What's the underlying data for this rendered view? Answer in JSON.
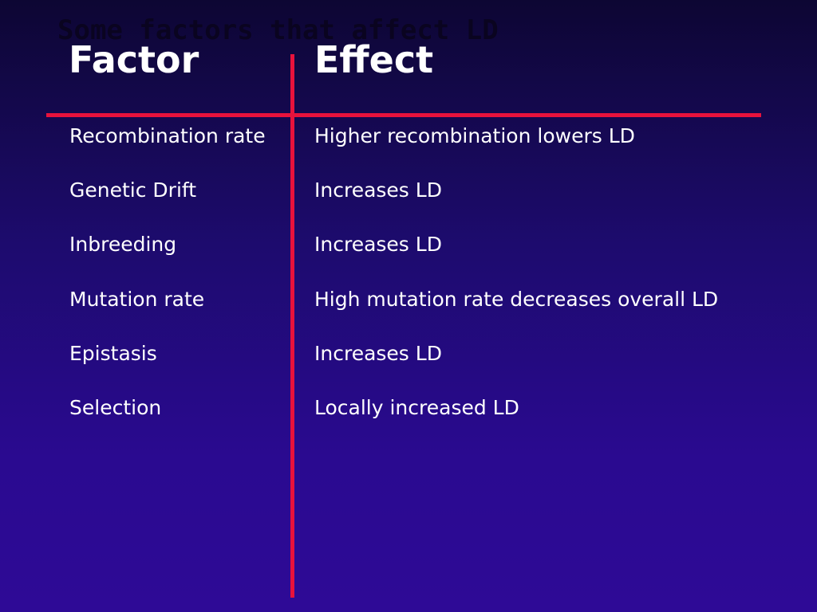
{
  "slide": {
    "title": "Some factors that affect LD"
  },
  "table": {
    "headers": {
      "factor": "Factor",
      "effect": "Effect"
    },
    "rows": [
      {
        "factor": "Recombination rate",
        "effect": "Higher recombination lowers LD"
      },
      {
        "factor": "Genetic Drift",
        "effect": "Increases LD"
      },
      {
        "factor": "Inbreeding",
        "effect": "Increases LD"
      },
      {
        "factor": "Mutation rate",
        "effect": "High mutation rate decreases overall LD"
      },
      {
        "factor": "Epistasis",
        "effect": "Increases LD"
      },
      {
        "factor": "Selection",
        "effect": "Locally increased LD"
      }
    ]
  },
  "colors": {
    "rule": "#e8123c",
    "text": "#ffffff",
    "title": "#0a0420"
  }
}
